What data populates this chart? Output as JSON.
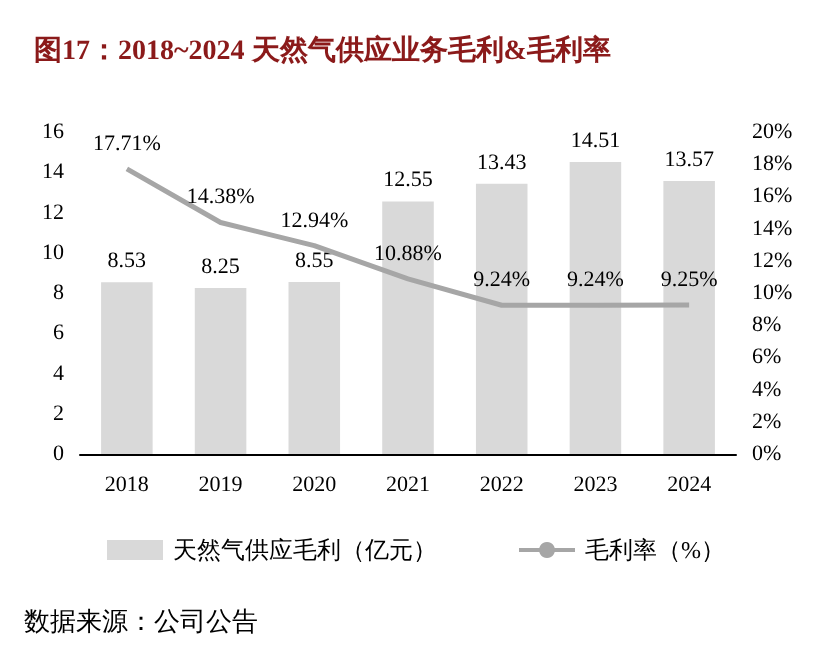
{
  "chart_data": {
    "type": "bar",
    "title": "图17：2018~2024 天然气供应业务毛利&毛利率",
    "categories": [
      "2018",
      "2019",
      "2020",
      "2021",
      "2022",
      "2023",
      "2024"
    ],
    "series": [
      {
        "name": "天然气供应毛利（亿元）",
        "color": "#d9d9d9",
        "values": [
          8.53,
          8.25,
          8.55,
          12.55,
          13.43,
          14.51,
          13.57
        ],
        "value_labels": [
          "8.53",
          "8.25",
          "8.55",
          "12.55",
          "13.43",
          "14.51",
          "13.57"
        ]
      },
      {
        "name": "毛利率（%）",
        "type": "line",
        "axis": "y2",
        "color": "#a6a6a6",
        "values": [
          17.71,
          14.38,
          12.94,
          10.88,
          9.24,
          9.24,
          9.25
        ],
        "value_labels": [
          "17.71%",
          "14.38%",
          "12.94%",
          "10.88%",
          "9.24%",
          "9.24%",
          "9.25%"
        ]
      }
    ],
    "ylim": [
      0,
      16
    ],
    "yticks": [
      0,
      2,
      4,
      6,
      8,
      10,
      12,
      14,
      16
    ],
    "y2lim": [
      0,
      20
    ],
    "y2ticks": [
      {
        "value": 0,
        "label": "0%"
      },
      {
        "value": 2,
        "label": "2%"
      },
      {
        "value": 4,
        "label": "4%"
      },
      {
        "value": 6,
        "label": "6%"
      },
      {
        "value": 8,
        "label": "8%"
      },
      {
        "value": 10,
        "label": "10%"
      },
      {
        "value": 12,
        "label": "12%"
      },
      {
        "value": 14,
        "label": "14%"
      },
      {
        "value": 16,
        "label": "16%"
      },
      {
        "value": 18,
        "label": "18%"
      },
      {
        "value": 20,
        "label": "20%"
      }
    ],
    "grid": false,
    "legend": "bottom",
    "marker": "none",
    "line_style": "solid",
    "annotations": [
      "数据来源：公司公告"
    ]
  }
}
